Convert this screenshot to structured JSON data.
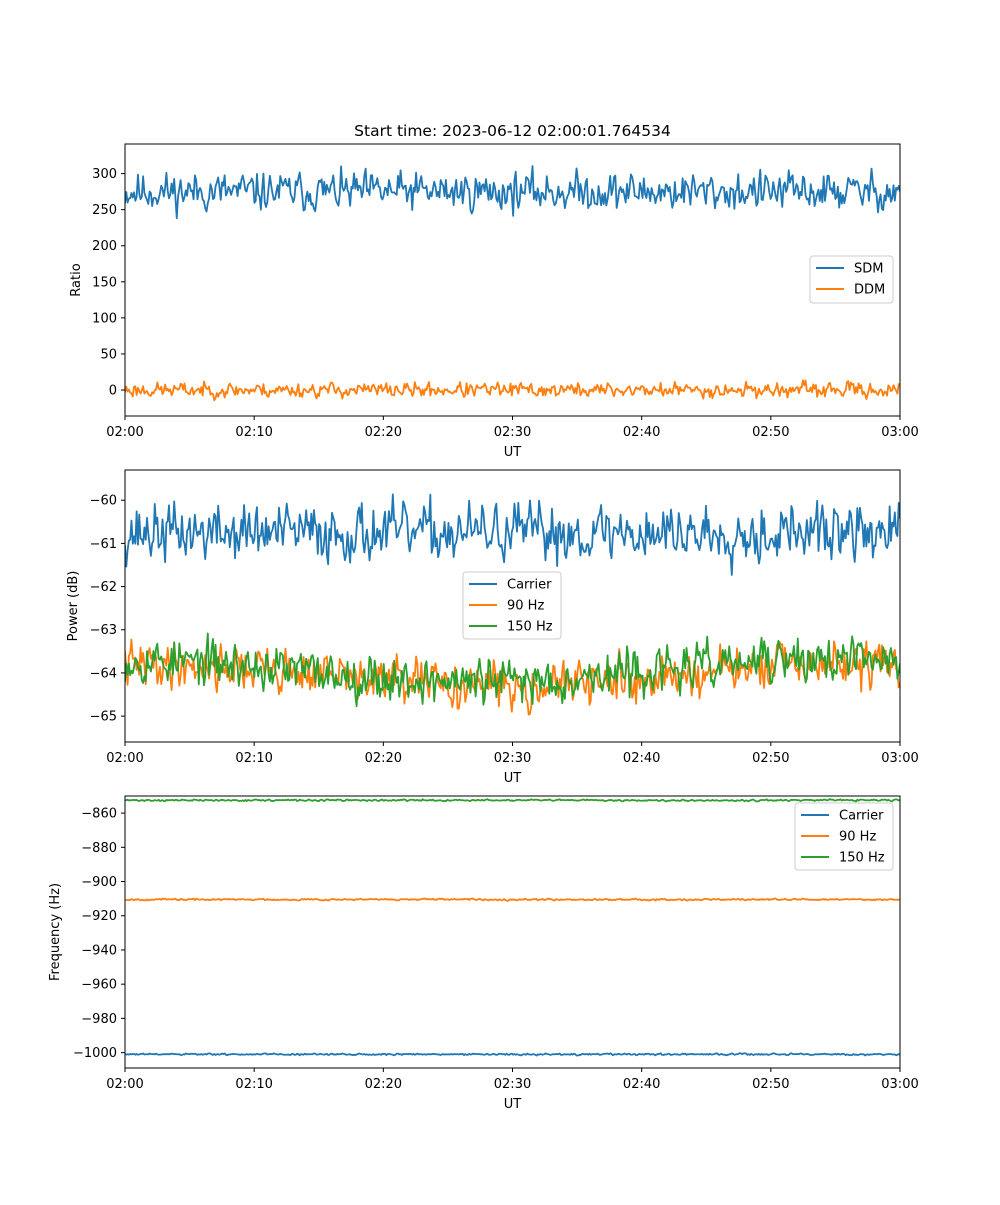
{
  "chart_data": [
    {
      "type": "line",
      "title": "Start time: 2023-06-12 02:00:01.764534",
      "xlabel": "UT",
      "ylabel": "Ratio",
      "x_range": [
        "02:00",
        "03:00"
      ],
      "x_ticks": [
        "02:00",
        "02:10",
        "02:20",
        "02:30",
        "02:40",
        "02:50",
        "03:00"
      ],
      "ylim": [
        -36,
        341
      ],
      "y_ticks": [
        0,
        50,
        100,
        150,
        200,
        250,
        300
      ],
      "y_tick_labels": [
        "0",
        "50",
        "100",
        "150",
        "200",
        "250",
        "300"
      ],
      "grid": false,
      "legend": "center-right",
      "series": [
        {
          "name": "SDM",
          "color": "#1f77b4",
          "mean": 275,
          "amplitude": 18,
          "seed": 11
        },
        {
          "name": "DDM",
          "color": "#ff7f0e",
          "mean": 0,
          "amplitude": 7,
          "seed": 23
        }
      ]
    },
    {
      "type": "line",
      "title": "",
      "xlabel": "UT",
      "ylabel": "Power (dB)",
      "x_range": [
        "02:00",
        "03:00"
      ],
      "x_ticks": [
        "02:00",
        "02:10",
        "02:20",
        "02:30",
        "02:40",
        "02:50",
        "03:00"
      ],
      "ylim": [
        -65.6,
        -59.3
      ],
      "y_ticks": [
        -65,
        -64,
        -63,
        -62,
        -61,
        -60
      ],
      "y_tick_labels": [
        "−65",
        "−64",
        "−63",
        "−62",
        "−61",
        "−60"
      ],
      "grid": false,
      "legend": "center",
      "series": [
        {
          "name": "Carrier",
          "color": "#1f77b4",
          "mean": -60.75,
          "amplitude": 0.45,
          "seed": 37
        },
        {
          "name": "90 Hz",
          "color": "#ff7f0e",
          "mean": -64.05,
          "amplitude": 0.35,
          "seed": 41
        },
        {
          "name": "150 Hz",
          "color": "#2ca02c",
          "mean": -63.95,
          "amplitude": 0.35,
          "seed": 53
        }
      ]
    },
    {
      "type": "line",
      "title": "",
      "xlabel": "UT",
      "ylabel": "Frequency (Hz)",
      "x_range": [
        "02:00",
        "03:00"
      ],
      "x_ticks": [
        "02:00",
        "02:10",
        "02:20",
        "02:30",
        "02:40",
        "02:50",
        "03:00"
      ],
      "ylim": [
        -1009,
        -850
      ],
      "y_ticks": [
        -1000,
        -980,
        -960,
        -940,
        -920,
        -900,
        -880,
        -860
      ],
      "y_tick_labels": [
        "−1000",
        "−980",
        "−960",
        "−940",
        "−920",
        "−900",
        "−880",
        "−860"
      ],
      "grid": false,
      "legend": "top-right",
      "series": [
        {
          "name": "Carrier",
          "color": "#1f77b4",
          "mean": -1001,
          "amplitude": 0.35,
          "seed": 61
        },
        {
          "name": "90 Hz",
          "color": "#ff7f0e",
          "mean": -910.5,
          "amplitude": 0.35,
          "seed": 67
        },
        {
          "name": "150 Hz",
          "color": "#2ca02c",
          "mean": -852.5,
          "amplitude": 0.35,
          "seed": 71
        }
      ]
    }
  ]
}
